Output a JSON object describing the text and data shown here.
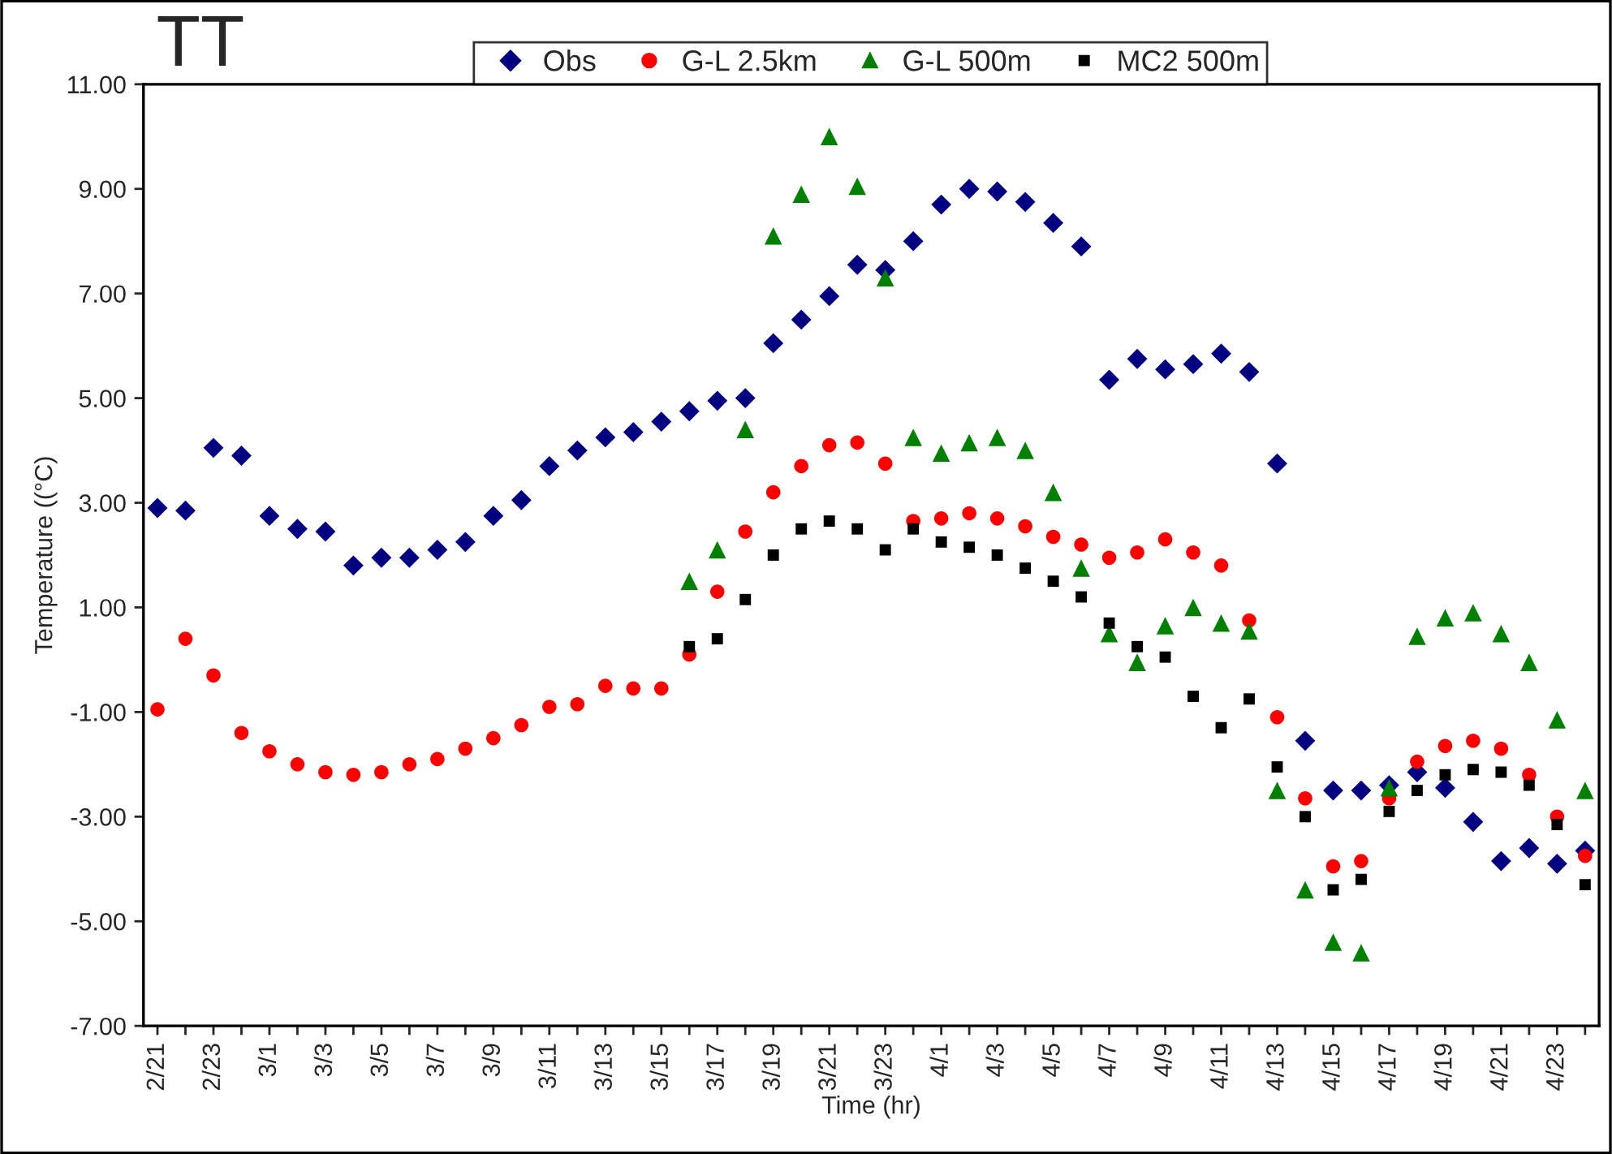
{
  "chart_data": {
    "type": "scatter",
    "title": "TT",
    "xlabel": "Time (hr)",
    "ylabel": "Temperature ((°C)",
    "categories": [
      "2/21",
      null,
      "2/23",
      null,
      "3/1",
      null,
      "3/3",
      null,
      "3/5",
      null,
      "3/7",
      null,
      "3/9",
      null,
      "3/11",
      null,
      "3/13",
      null,
      "3/15",
      null,
      "3/17",
      null,
      "3/19",
      null,
      "3/21",
      null,
      "3/23",
      null,
      "4/1",
      null,
      "4/3",
      null,
      "4/5",
      null,
      "4/7",
      null,
      "4/9",
      null,
      "4/11",
      null,
      "4/13",
      null,
      "4/15",
      null,
      "4/17",
      null,
      "4/19",
      null,
      "4/21",
      null,
      "4/23",
      null
    ],
    "series": [
      {
        "name": "Obs",
        "color": "#000080",
        "marker": "diamond",
        "values": [
          2.9,
          2.85,
          4.05,
          3.9,
          2.75,
          2.5,
          2.45,
          1.8,
          1.95,
          1.95,
          2.1,
          2.25,
          2.75,
          3.05,
          3.7,
          4.0,
          4.25,
          4.35,
          4.55,
          4.75,
          4.95,
          5.0,
          6.05,
          6.5,
          6.95,
          7.55,
          7.45,
          8.0,
          8.7,
          9.0,
          8.95,
          8.75,
          8.35,
          7.9,
          5.35,
          5.75,
          5.55,
          5.65,
          5.85,
          5.5,
          3.75,
          -1.55,
          -2.5,
          -2.5,
          -2.4,
          -2.15,
          -2.45,
          -3.1,
          -3.85,
          -3.6,
          -3.9,
          -3.65
        ]
      },
      {
        "name": "G-L 2.5km",
        "color": "#ff0000",
        "marker": "circle",
        "values": [
          -0.95,
          0.4,
          -0.3,
          -1.4,
          -1.75,
          -2.0,
          -2.15,
          -2.2,
          -2.15,
          -2.0,
          -1.9,
          -1.7,
          -1.5,
          -1.25,
          -0.9,
          -0.85,
          -0.5,
          -0.55,
          -0.55,
          0.1,
          1.3,
          2.45,
          3.2,
          3.7,
          4.1,
          4.15,
          3.75,
          2.65,
          2.7,
          2.8,
          2.7,
          2.55,
          2.35,
          2.2,
          1.95,
          2.05,
          2.3,
          2.05,
          1.8,
          0.75,
          -1.1,
          -2.65,
          -3.95,
          -3.85,
          -2.65,
          -1.95,
          -1.65,
          -1.55,
          -1.7,
          -2.2,
          -3.0,
          -3.75
        ]
      },
      {
        "name": "G-L 500m",
        "color": "#008000",
        "marker": "triangle",
        "values": [
          null,
          null,
          null,
          null,
          null,
          null,
          null,
          null,
          null,
          null,
          null,
          null,
          null,
          null,
          null,
          null,
          null,
          null,
          null,
          1.5,
          2.1,
          4.4,
          8.1,
          8.9,
          10.0,
          9.05,
          7.3,
          4.25,
          3.95,
          4.15,
          4.25,
          4.0,
          3.2,
          1.75,
          0.5,
          -0.05,
          0.65,
          1.0,
          0.7,
          0.55,
          -2.5,
          -4.4,
          -5.4,
          -5.6,
          -2.45,
          0.45,
          0.8,
          0.9,
          0.5,
          -0.05,
          -1.15,
          -2.5
        ]
      },
      {
        "name": "MC2 500m",
        "color": "#000000",
        "marker": "square",
        "values": [
          null,
          null,
          null,
          null,
          null,
          null,
          null,
          null,
          null,
          null,
          null,
          null,
          null,
          null,
          null,
          null,
          null,
          null,
          null,
          0.25,
          0.4,
          1.15,
          2.0,
          2.5,
          2.65,
          2.5,
          2.1,
          2.5,
          2.25,
          2.15,
          2.0,
          1.75,
          1.5,
          1.2,
          0.7,
          0.25,
          0.05,
          -0.7,
          -1.3,
          -0.75,
          -2.05,
          -3.0,
          -4.4,
          -4.2,
          -2.9,
          -2.5,
          -2.2,
          -2.1,
          -2.15,
          -2.4,
          -3.15,
          -4.3
        ]
      }
    ],
    "ylim": [
      -7,
      11
    ],
    "yticks": [
      {
        "value": -7,
        "label": "-7.00"
      },
      {
        "value": -5,
        "label": "-5.00"
      },
      {
        "value": -3,
        "label": "-3.00"
      },
      {
        "value": -1,
        "label": "-1.00"
      },
      {
        "value": 1,
        "label": "1.00"
      },
      {
        "value": 3,
        "label": "3.00"
      },
      {
        "value": 5,
        "label": "5.00"
      },
      {
        "value": 7,
        "label": "7.00"
      },
      {
        "value": 9,
        "label": "9.00"
      },
      {
        "value": 11,
        "label": "11.00"
      }
    ],
    "grid": false,
    "legend": "top"
  }
}
